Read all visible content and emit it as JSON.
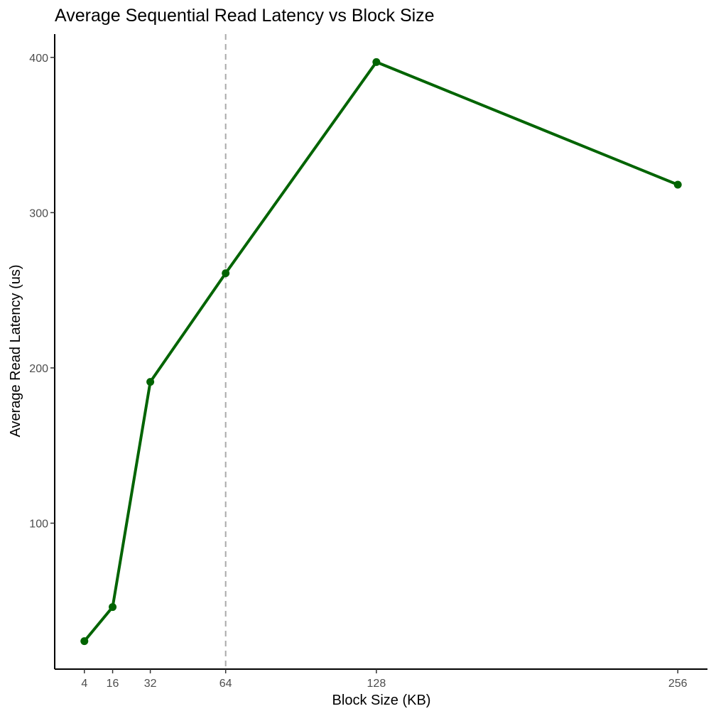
{
  "chart_data": {
    "type": "line",
    "title": "Average Sequential Read Latency vs Block Size",
    "xlabel": "Block Size (KB)",
    "ylabel": "Average Read Latency (us)",
    "x": [
      4,
      16,
      32,
      64,
      128,
      256
    ],
    "series": [
      {
        "values": [
          24,
          46,
          191,
          261,
          397,
          318
        ]
      }
    ],
    "xticks": [
      4,
      16,
      32,
      64,
      128,
      256
    ],
    "yticks": [
      100,
      200,
      300,
      400
    ],
    "xlim": [
      -8.6,
      268.6
    ],
    "ylim": [
      6,
      415
    ],
    "reference_line": {
      "x": 64,
      "style": "dashed"
    },
    "grid": false,
    "colors": {
      "line": "#006400",
      "reference": "#aaaaaa",
      "axis": "#000000"
    }
  }
}
